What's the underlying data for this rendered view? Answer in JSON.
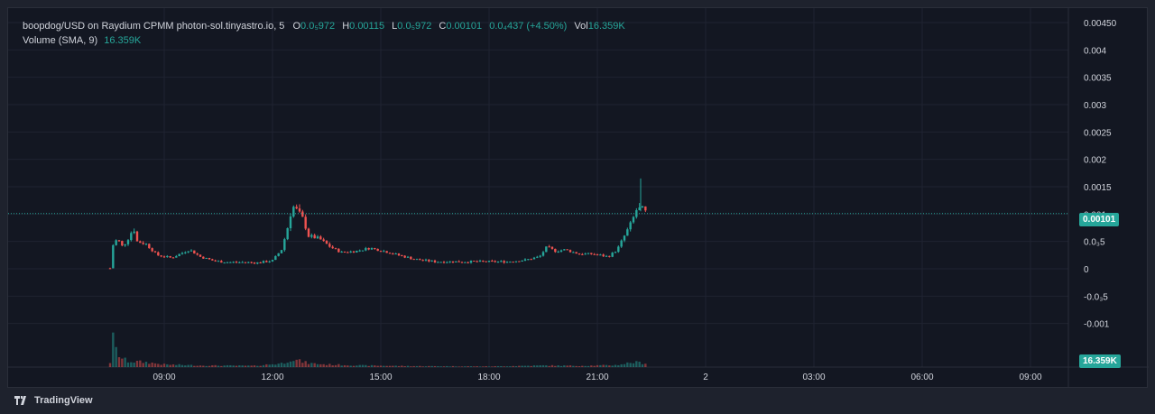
{
  "legend": {
    "symbol": "boopdog/USD on Raydium CPMM photon-sol.tinyastro.io, 5",
    "o_label": "O",
    "o_value": "0.0₅972",
    "h_label": "H",
    "h_value": "0.00115",
    "l_label": "L",
    "l_value": "0.0₅972",
    "c_label": "C",
    "c_value": "0.00101",
    "change": "0.0₄437 (+4.50%)",
    "vol_label": "Vol",
    "vol_value": "16.359K",
    "volume_label": "Volume (SMA, 9)",
    "volume_value": "16.359K"
  },
  "badges": {
    "last_price": "0.00101",
    "last_volume": "16.359K"
  },
  "footer": {
    "brand": "TradingView"
  },
  "colors": {
    "up": "#26a69a",
    "down": "#ef5350",
    "background": "#131722",
    "grid": "#1f2331"
  },
  "chart_data": {
    "type": "candlestick",
    "interval": "5",
    "x_tick_labels": [
      "09:00",
      "12:00",
      "15:00",
      "18:00",
      "21:00",
      "2",
      "03:00",
      "06:00",
      "09:00"
    ],
    "y_tick_labels": [
      "0.00450",
      "0.004",
      "0.0035",
      "0.003",
      "0.0025",
      "0.002",
      "0.0015",
      "0.001",
      "0.0₃5",
      "0",
      "-0.0₃5",
      "-0.001"
    ],
    "ylim": [
      -0.00125,
      0.00455
    ],
    "last_price": 0.00101,
    "grid": true,
    "price_keypoints": [
      [
        7.5,
        1e-05
      ],
      [
        7.55,
        0.0004
      ],
      [
        7.7,
        0.00055
      ],
      [
        7.85,
        0.0004
      ],
      [
        8.0,
        0.00055
      ],
      [
        8.15,
        0.00075
      ],
      [
        8.25,
        0.0005
      ],
      [
        8.5,
        0.00045
      ],
      [
        8.8,
        0.00025
      ],
      [
        9.2,
        0.0002
      ],
      [
        9.4,
        0.00026
      ],
      [
        9.7,
        0.00035
      ],
      [
        10.0,
        0.00022
      ],
      [
        10.4,
        0.00014
      ],
      [
        10.8,
        0.00012
      ],
      [
        11.2,
        0.00012
      ],
      [
        11.6,
        0.00011
      ],
      [
        12.0,
        0.00015
      ],
      [
        12.25,
        0.00035
      ],
      [
        12.4,
        0.0007
      ],
      [
        12.55,
        0.00115
      ],
      [
        12.7,
        0.00105
      ],
      [
        12.85,
        0.0009
      ],
      [
        13.0,
        0.0006
      ],
      [
        13.3,
        0.00055
      ],
      [
        13.6,
        0.0004
      ],
      [
        13.9,
        0.0003
      ],
      [
        14.3,
        0.00032
      ],
      [
        14.7,
        0.00038
      ],
      [
        15.1,
        0.00032
      ],
      [
        15.6,
        0.00023
      ],
      [
        16.0,
        0.00017
      ],
      [
        16.5,
        0.00013
      ],
      [
        17.5,
        0.00013
      ],
      [
        18.5,
        0.00013
      ],
      [
        19.0,
        0.00016
      ],
      [
        19.4,
        0.00022
      ],
      [
        19.6,
        0.0004
      ],
      [
        19.85,
        0.00032
      ],
      [
        20.1,
        0.00035
      ],
      [
        20.5,
        0.00027
      ],
      [
        20.9,
        0.00027
      ],
      [
        21.3,
        0.00022
      ],
      [
        21.55,
        0.00035
      ],
      [
        21.75,
        0.0006
      ],
      [
        21.95,
        0.00085
      ],
      [
        22.1,
        0.0011
      ],
      [
        22.3,
        0.00107
      ],
      [
        22.35,
        0.00101
      ]
    ],
    "volume_keypoints": [
      [
        7.5,
        0.15
      ],
      [
        7.55,
        1.0
      ],
      [
        7.65,
        0.55
      ],
      [
        7.8,
        0.28
      ],
      [
        8.0,
        0.18
      ],
      [
        8.5,
        0.15
      ],
      [
        9.0,
        0.08
      ],
      [
        10.0,
        0.05
      ],
      [
        11.5,
        0.04
      ],
      [
        12.3,
        0.12
      ],
      [
        12.5,
        0.25
      ],
      [
        12.7,
        0.2
      ],
      [
        13.0,
        0.12
      ],
      [
        13.5,
        0.08
      ],
      [
        14.5,
        0.05
      ],
      [
        16.0,
        0.03
      ],
      [
        18.0,
        0.02
      ],
      [
        19.5,
        0.05
      ],
      [
        20.5,
        0.04
      ],
      [
        21.5,
        0.06
      ],
      [
        22.0,
        0.15
      ],
      [
        22.35,
        0.12
      ]
    ]
  }
}
